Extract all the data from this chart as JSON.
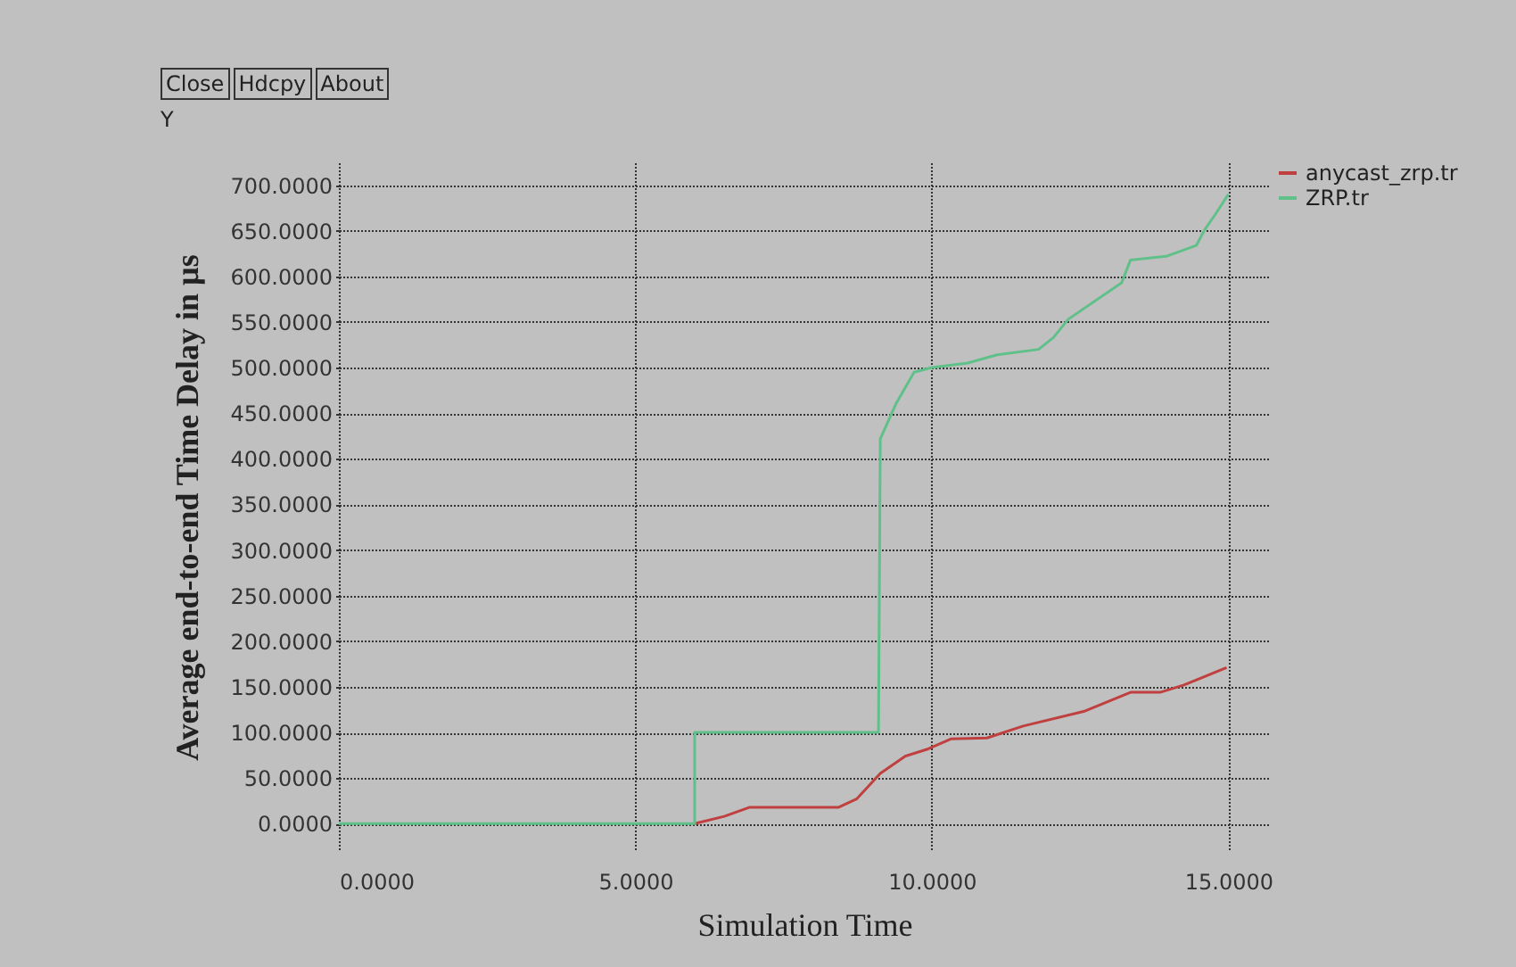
{
  "chart_data": {
    "type": "line",
    "xlabel": "Simulation Time",
    "ylabel": "Average end-to-end Time Delay in µs",
    "annotations": [
      "Close",
      "Hdcpy",
      "About",
      "Y"
    ],
    "xlim": [
      0,
      15.7
    ],
    "ylim": [
      -30,
      725
    ],
    "xticks": [
      {
        "value": 0,
        "label": "0.0000"
      },
      {
        "value": 5,
        "label": "5.0000"
      },
      {
        "value": 10,
        "label": "10.0000"
      },
      {
        "value": 15,
        "label": "15.0000"
      }
    ],
    "yticks": [
      {
        "value": 0,
        "label": "0.0000"
      },
      {
        "value": 50,
        "label": "50.0000"
      },
      {
        "value": 100,
        "label": "100.0000"
      },
      {
        "value": 150,
        "label": "150.0000"
      },
      {
        "value": 200,
        "label": "200.0000"
      },
      {
        "value": 250,
        "label": "250.0000"
      },
      {
        "value": 300,
        "label": "300.0000"
      },
      {
        "value": 350,
        "label": "350.0000"
      },
      {
        "value": 400,
        "label": "400.0000"
      },
      {
        "value": 450,
        "label": "450.0000"
      },
      {
        "value": 500,
        "label": "500.0000"
      },
      {
        "value": 550,
        "label": "550.0000"
      },
      {
        "value": 600,
        "label": "600.0000"
      },
      {
        "value": 650,
        "label": "650.0000"
      },
      {
        "value": 700,
        "label": "700.0000"
      }
    ],
    "grid": true,
    "legend": "top right",
    "marker": "none",
    "line_style": "solid",
    "series": [
      {
        "name": "anycast_zrp.tr",
        "color": "#c04040",
        "x": [
          6.0,
          6.5,
          6.93,
          8.43,
          8.73,
          9.13,
          9.55,
          9.94,
          10.33,
          10.93,
          11.54,
          12.56,
          13.35,
          13.85,
          14.25,
          14.97
        ],
        "values": [
          0,
          8,
          18,
          18,
          27,
          55,
          74,
          82,
          93,
          94,
          107,
          123,
          144,
          144,
          152,
          171
        ]
      },
      {
        "name": "ZRP.tr",
        "color": "#5fc08a",
        "x": [
          0,
          6.0,
          6.0,
          9.1,
          9.13,
          9.2,
          9.4,
          9.7,
          10.0,
          10.6,
          11.1,
          11.8,
          12.05,
          12.3,
          13.2,
          13.35,
          13.95,
          14.46,
          14.6,
          14.8,
          15.0
        ],
        "values": [
          0,
          0,
          100,
          100,
          422,
          432,
          461,
          495,
          500,
          505,
          514,
          520,
          533,
          553,
          593,
          618,
          622,
          634,
          651,
          670,
          690
        ]
      }
    ]
  }
}
